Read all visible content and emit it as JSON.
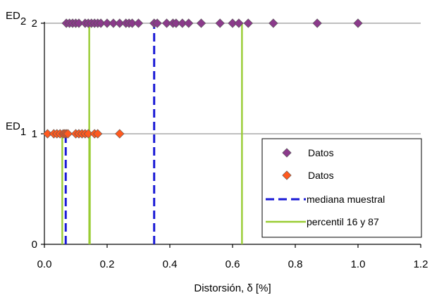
{
  "chart_data": {
    "type": "scatter",
    "xlabel_prefix": "Distorsión, ",
    "xlabel_symbol": "δ",
    "xlabel_suffix": " [%]",
    "xlim": [
      0,
      1.2
    ],
    "ylim": [
      0,
      2
    ],
    "x_ticks": [
      "0.0",
      "0.2",
      "0.4",
      "0.6",
      "0.8",
      "1.0",
      "1.2"
    ],
    "y_ticks": [
      "0",
      "1",
      "2"
    ],
    "y_ticks_values": [
      0,
      1,
      2
    ],
    "x_ticks_values": [
      0,
      0.2,
      0.4,
      0.6,
      0.8,
      1.0,
      1.2
    ],
    "y_level_labels": [
      {
        "text": "ED",
        "sub": "1",
        "y": 1
      },
      {
        "text": "ED",
        "sub": "2",
        "y": 2
      }
    ],
    "grid": "horizontal",
    "legend_position": "bottom-right",
    "series": [
      {
        "name": "Datos",
        "kind": "marker",
        "color": "#8B3A8B",
        "points": [
          [
            0.07,
            2
          ],
          [
            0.08,
            2
          ],
          [
            0.09,
            2
          ],
          [
            0.1,
            2
          ],
          [
            0.11,
            2
          ],
          [
            0.13,
            2
          ],
          [
            0.14,
            2
          ],
          [
            0.15,
            2
          ],
          [
            0.16,
            2
          ],
          [
            0.17,
            2
          ],
          [
            0.18,
            2
          ],
          [
            0.2,
            2
          ],
          [
            0.22,
            2
          ],
          [
            0.24,
            2
          ],
          [
            0.26,
            2
          ],
          [
            0.27,
            2
          ],
          [
            0.28,
            2
          ],
          [
            0.3,
            2
          ],
          [
            0.35,
            2
          ],
          [
            0.36,
            2
          ],
          [
            0.39,
            2
          ],
          [
            0.41,
            2
          ],
          [
            0.42,
            2
          ],
          [
            0.44,
            2
          ],
          [
            0.46,
            2
          ],
          [
            0.5,
            2
          ],
          [
            0.56,
            2
          ],
          [
            0.6,
            2
          ],
          [
            0.62,
            2
          ],
          [
            0.65,
            2
          ],
          [
            0.73,
            2
          ],
          [
            0.87,
            2
          ],
          [
            1.0,
            2
          ]
        ]
      },
      {
        "name": "Datos",
        "kind": "marker",
        "color": "#FF5A1F",
        "points": [
          [
            0.01,
            1
          ],
          [
            0.03,
            1
          ],
          [
            0.04,
            1
          ],
          [
            0.05,
            1
          ],
          [
            0.06,
            1
          ],
          [
            0.065,
            1
          ],
          [
            0.07,
            1
          ],
          [
            0.075,
            1
          ],
          [
            0.1,
            1
          ],
          [
            0.11,
            1
          ],
          [
            0.12,
            1
          ],
          [
            0.13,
            1
          ],
          [
            0.14,
            1
          ],
          [
            0.16,
            1
          ],
          [
            0.17,
            1
          ],
          [
            0.24,
            1
          ]
        ]
      },
      {
        "name": "mediana muestral",
        "kind": "vline",
        "style": "dashed",
        "color": "#1A1AD6",
        "lines": [
          [
            0.068,
            0,
            1
          ],
          [
            0.35,
            0,
            2
          ]
        ]
      },
      {
        "name": "percentil 16 y 87",
        "kind": "vline",
        "style": "solid",
        "color": "#99CC33",
        "lines": [
          [
            0.057,
            0,
            1
          ],
          [
            0.145,
            0,
            1
          ],
          [
            0.143,
            0,
            2
          ],
          [
            0.63,
            0,
            2
          ]
        ]
      }
    ]
  }
}
